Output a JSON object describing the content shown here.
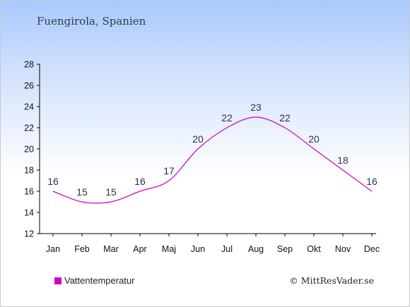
{
  "header": {
    "title": "Fuengirola, Spanien"
  },
  "chart_data": {
    "type": "line",
    "categories": [
      "Jan",
      "Feb",
      "Mar",
      "Apr",
      "Maj",
      "Jun",
      "Jul",
      "Aug",
      "Sep",
      "Okt",
      "Nov",
      "Dec"
    ],
    "series": [
      {
        "name": "Vattentemperatur",
        "values": [
          16,
          15,
          15,
          16,
          17,
          20,
          22,
          23,
          22,
          20,
          18,
          16
        ],
        "color": "#cc00cc"
      }
    ],
    "ylim": [
      12,
      28
    ],
    "yticks": [
      12,
      14,
      16,
      18,
      20,
      22,
      24,
      26,
      28
    ],
    "grid": false,
    "legend_position": "bottom-left"
  },
  "legend": {
    "label": "Vattentemperatur",
    "color": "#cc00cc"
  },
  "credit": "© MittResVader.se"
}
